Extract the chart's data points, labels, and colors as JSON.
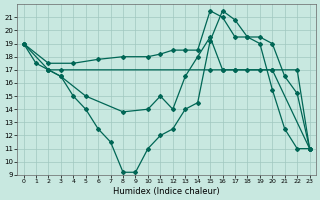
{
  "xlabel": "Humidex (Indice chaleur)",
  "bg_color": "#c8e8e0",
  "grid_color": "#a0c8c0",
  "line_color": "#006655",
  "xlim": [
    -0.5,
    23.5
  ],
  "ylim": [
    9,
    22
  ],
  "xticks": [
    0,
    1,
    2,
    3,
    4,
    5,
    6,
    7,
    8,
    9,
    10,
    11,
    12,
    13,
    14,
    15,
    16,
    17,
    18,
    19,
    20,
    21,
    22,
    23
  ],
  "yticks": [
    9,
    10,
    11,
    12,
    13,
    14,
    15,
    16,
    17,
    18,
    19,
    20,
    21
  ],
  "line1_x": [
    0,
    2,
    3,
    15,
    16,
    17,
    18,
    19,
    20,
    22,
    23
  ],
  "line1_y": [
    19,
    17,
    17,
    17,
    17,
    17,
    17,
    17,
    17,
    17,
    11
  ],
  "line2_x": [
    0,
    1,
    2,
    3,
    4,
    5,
    6,
    7,
    8,
    9,
    10,
    11,
    12,
    13,
    14,
    15,
    16,
    17,
    18,
    19,
    20,
    21,
    22,
    23
  ],
  "line2_y": [
    19,
    17.5,
    17,
    16.5,
    15,
    14,
    12.5,
    11.5,
    9.2,
    9.2,
    11,
    12,
    12.5,
    14,
    14.5,
    19.2,
    21.5,
    20.8,
    19.5,
    19,
    15.5,
    12.5,
    11,
    11
  ],
  "line3_x": [
    0,
    2,
    4,
    6,
    8,
    10,
    11,
    12,
    13,
    14,
    15,
    16,
    17,
    18,
    19,
    20,
    21,
    22,
    23
  ],
  "line3_y": [
    19,
    17.5,
    17.5,
    17.8,
    18,
    18,
    18.2,
    18.5,
    18.5,
    18.5,
    21.5,
    21,
    19.5,
    19.5,
    19.5,
    19,
    16.5,
    15.2,
    11
  ],
  "line4_x": [
    2,
    3,
    5,
    8,
    10,
    11,
    12,
    13,
    14,
    15,
    16,
    17,
    20,
    23
  ],
  "line4_y": [
    17,
    16.5,
    15,
    13.8,
    14,
    15,
    14,
    16.5,
    18,
    19.5,
    17,
    17,
    17,
    11
  ]
}
